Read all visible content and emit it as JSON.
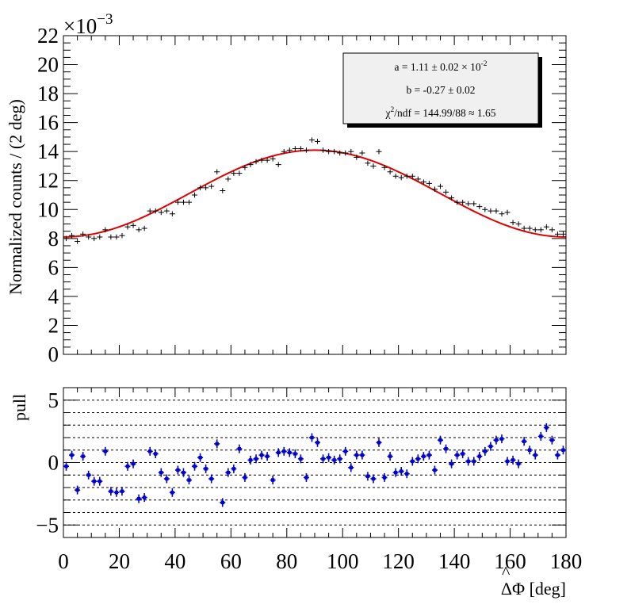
{
  "chart_data": [
    {
      "type": "scatter",
      "title": "",
      "xlabel": "ΔΦ [deg]",
      "ylabel": "Normalized counts / (2 deg)",
      "y_exponent_label": "×10",
      "y_exponent_power": "−3",
      "xlim": [
        0,
        180
      ],
      "ylim": [
        0,
        22
      ],
      "y_ticks": [
        "0",
        "2",
        "4",
        "6",
        "8",
        "10",
        "12",
        "14",
        "16",
        "18",
        "20",
        "22"
      ],
      "fit_color": "#e00000",
      "data_color": "#000000",
      "stats_box": {
        "line1": "a = 1.11 ± 0.02 × 10",
        "line1_sup": "-2",
        "line2": "b = -0.27 ± 0.02",
        "line3_chi": "χ",
        "line3_sup": "2",
        "line3": "/ndf = 144.99/88 ≈ 1.65"
      },
      "fit": {
        "name": "",
        "function": "a(1 + b cos(2ΔΦ))",
        "a": 11.1,
        "b": -0.27
      },
      "series": [
        {
          "name": "",
          "x": [
            1,
            3,
            5,
            7,
            9,
            11,
            13,
            15,
            17,
            19,
            21,
            23,
            25,
            27,
            29,
            31,
            33,
            35,
            37,
            39,
            41,
            43,
            45,
            47,
            49,
            51,
            53,
            55,
            57,
            59,
            61,
            63,
            65,
            67,
            69,
            71,
            73,
            75,
            77,
            79,
            81,
            83,
            85,
            87,
            89,
            91,
            93,
            95,
            97,
            99,
            101,
            103,
            105,
            107,
            109,
            111,
            113,
            115,
            117,
            119,
            121,
            123,
            125,
            127,
            129,
            131,
            133,
            135,
            137,
            139,
            141,
            143,
            145,
            147,
            149,
            151,
            153,
            155,
            157,
            159,
            161,
            163,
            165,
            167,
            169,
            171,
            173,
            175,
            177,
            179
          ],
          "y": [
            8.0,
            8.2,
            7.8,
            8.3,
            8.1,
            8.0,
            8.1,
            8.6,
            8.1,
            8.1,
            8.2,
            8.8,
            8.9,
            8.6,
            8.7,
            9.9,
            9.9,
            9.8,
            9.9,
            9.7,
            10.5,
            10.5,
            10.5,
            11.0,
            11.5,
            11.5,
            11.6,
            12.6,
            11.3,
            12.1,
            12.5,
            12.5,
            12.9,
            13.1,
            13.3,
            13.4,
            13.4,
            13.5,
            13.1,
            14.0,
            14.1,
            14.2,
            14.2,
            14.1,
            14.8,
            14.7,
            14.1,
            14.0,
            14.0,
            13.9,
            13.9,
            14.0,
            13.6,
            13.9,
            13.2,
            13.0,
            14.0,
            12.9,
            12.6,
            12.3,
            12.2,
            12.3,
            12.3,
            12.1,
            11.9,
            11.8,
            11.4,
            11.6,
            11.2,
            10.8,
            10.5,
            10.5,
            10.4,
            10.4,
            10.2,
            10.0,
            9.9,
            9.9,
            9.7,
            9.8,
            9.1,
            9.0,
            8.7,
            8.7,
            8.6,
            8.6,
            8.8,
            8.6,
            8.3,
            8.3
          ],
          "yerr": 0.18
        }
      ]
    },
    {
      "type": "scatter",
      "title": "",
      "xlabel": "ΔΦ [deg]",
      "ylabel": "pull",
      "xlim": [
        0,
        180
      ],
      "ylim": [
        -6,
        6
      ],
      "x_ticks": [
        "0",
        "20",
        "40",
        "60",
        "80",
        "100",
        "120",
        "140",
        "160",
        "180"
      ],
      "y_ticks": [
        "−5",
        "0",
        "5"
      ],
      "gridlines_y": [
        -5,
        -4,
        -3,
        -2,
        -1,
        0,
        1,
        2,
        3,
        4,
        5
      ],
      "marker_color": "#0000cc",
      "series": [
        {
          "name": "",
          "x": [
            1,
            3,
            5,
            7,
            9,
            11,
            13,
            15,
            17,
            19,
            21,
            23,
            25,
            27,
            29,
            31,
            33,
            35,
            37,
            39,
            41,
            43,
            45,
            47,
            49,
            51,
            53,
            55,
            57,
            59,
            61,
            63,
            65,
            67,
            69,
            71,
            73,
            75,
            77,
            79,
            81,
            83,
            85,
            87,
            89,
            91,
            93,
            95,
            97,
            99,
            101,
            103,
            105,
            107,
            109,
            111,
            113,
            115,
            117,
            119,
            121,
            123,
            125,
            127,
            129,
            131,
            133,
            135,
            137,
            139,
            141,
            143,
            145,
            147,
            149,
            151,
            153,
            155,
            157,
            159,
            161,
            163,
            165,
            167,
            169,
            171,
            173,
            175,
            177,
            179
          ],
          "y": [
            -0.3,
            0.6,
            -2.2,
            0.5,
            -1.0,
            -1.5,
            -1.5,
            0.9,
            -2.3,
            -2.4,
            -2.3,
            -0.3,
            -0.1,
            -2.9,
            -2.8,
            0.9,
            0.7,
            -0.8,
            -1.3,
            -2.4,
            -0.6,
            -0.8,
            -1.4,
            -0.3,
            0.4,
            -0.5,
            -1.3,
            1.5,
            -3.2,
            -0.8,
            -0.5,
            1.1,
            -1.2,
            0.2,
            0.3,
            0.6,
            0.5,
            -1.4,
            0.8,
            0.9,
            0.8,
            0.7,
            0.3,
            -1.2,
            2.0,
            1.6,
            0.3,
            0.4,
            0.2,
            0.3,
            0.9,
            -0.4,
            0.6,
            0.6,
            -1.1,
            -1.3,
            1.6,
            -1.2,
            0.5,
            -0.8,
            -0.7,
            -0.9,
            0.1,
            0.3,
            0.5,
            0.6,
            -0.6,
            1.8,
            1.1,
            -0.1,
            0.6,
            0.7,
            0.1,
            0.1,
            0.5,
            0.9,
            1.3,
            1.8,
            1.9,
            0.1,
            0.2,
            -0.1,
            1.7,
            1.0,
            0.6,
            2.1,
            2.8,
            1.8,
            0.6,
            1.0
          ],
          "yerr": 0.35
        }
      ]
    }
  ]
}
